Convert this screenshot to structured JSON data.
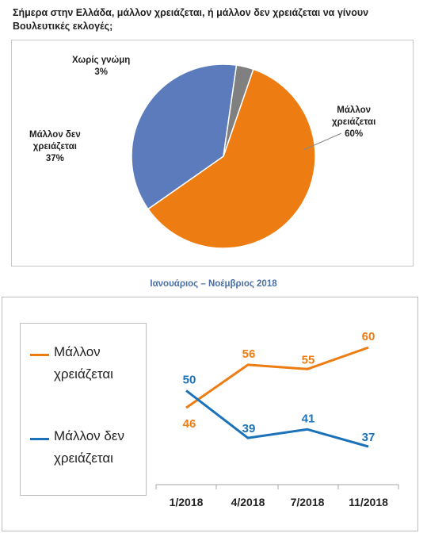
{
  "question": "Σήμερα στην Ελλάδα, μάλλον χρειάζεται, ή μάλλον δεν χρειάζεται να γίνουν Βουλευτικές εκλογές;",
  "subtitle": "Ιανουάριος – Νοέμβριος 2018",
  "colors": {
    "orange": "#ed7d12",
    "blue_pie": "#5b7bbd",
    "gray": "#808080",
    "blue_line": "#1c72b8"
  },
  "chart_data": [
    {
      "type": "pie",
      "slices": [
        {
          "label_lines": [
            "Μάλλον",
            "χρειάζεται"
          ],
          "percent_text": "60%",
          "value": 60,
          "color": "#ed7d12"
        },
        {
          "label_lines": [
            "Μάλλον δεν",
            "χρειάζεται"
          ],
          "percent_text": "37%",
          "value": 37,
          "color": "#5b7bbd"
        },
        {
          "label_lines": [
            "Χωρίς γνώμη"
          ],
          "percent_text": "3%",
          "value": 3,
          "color": "#808080"
        }
      ]
    },
    {
      "type": "line",
      "categories": [
        "1/2018",
        "4/2018",
        "7/2018",
        "11/2018"
      ],
      "ylim": [
        30,
        65
      ],
      "legend_placement": "left",
      "series": [
        {
          "name_lines": [
            "Μάλλον",
            "χρειάζεται"
          ],
          "values": [
            46,
            56,
            55,
            60
          ],
          "color": "#ed7d12"
        },
        {
          "name_lines": [
            "Μάλλον δεν",
            "χρειάζεται"
          ],
          "values": [
            50,
            39,
            41,
            37
          ],
          "color": "#1c72b8"
        }
      ]
    }
  ]
}
